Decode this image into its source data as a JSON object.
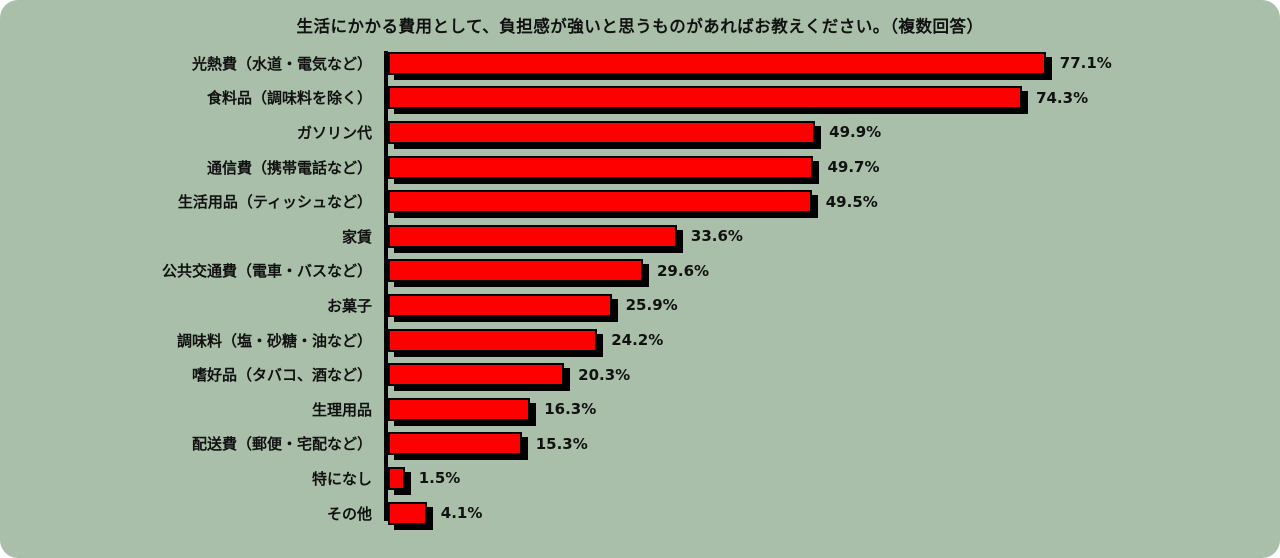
{
  "background_color": "#a9bfa9",
  "chart_data": {
    "type": "bar",
    "orientation": "horizontal",
    "title": "生活にかかる費用として、負担感が強いと思うものがあればお教えください。（複数回答）",
    "categories": [
      "光熱費（水道・電気など）",
      "食料品（調味料を除く）",
      "ガソリン代",
      "通信費（携帯電話など）",
      "生活用品（ティッシュなど）",
      "家賃",
      "公共交通費（電車・バスなど）",
      "お菓子",
      "調味料（塩・砂糖・油など）",
      "嗜好品（タバコ、酒など）",
      "生理用品",
      "配送費（郵便・宅配など）",
      "特になし",
      "その他"
    ],
    "values": [
      77.1,
      74.3,
      49.9,
      49.7,
      49.5,
      33.6,
      29.6,
      25.9,
      24.2,
      20.3,
      16.3,
      15.3,
      1.5,
      4.1
    ],
    "value_labels": [
      "77.1%",
      "74.3%",
      "49.9%",
      "49.7%",
      "49.5%",
      "33.6%",
      "29.6%",
      "25.9%",
      "24.2%",
      "20.3%",
      "16.3%",
      "15.3%",
      "1.5%",
      "4.1%"
    ],
    "bar_color": "#fe0000",
    "bar_outline_color": "#000000",
    "shadow_color": "#000000",
    "xlim": [
      0,
      100
    ],
    "unit": "%",
    "grid": false,
    "legend": false
  }
}
